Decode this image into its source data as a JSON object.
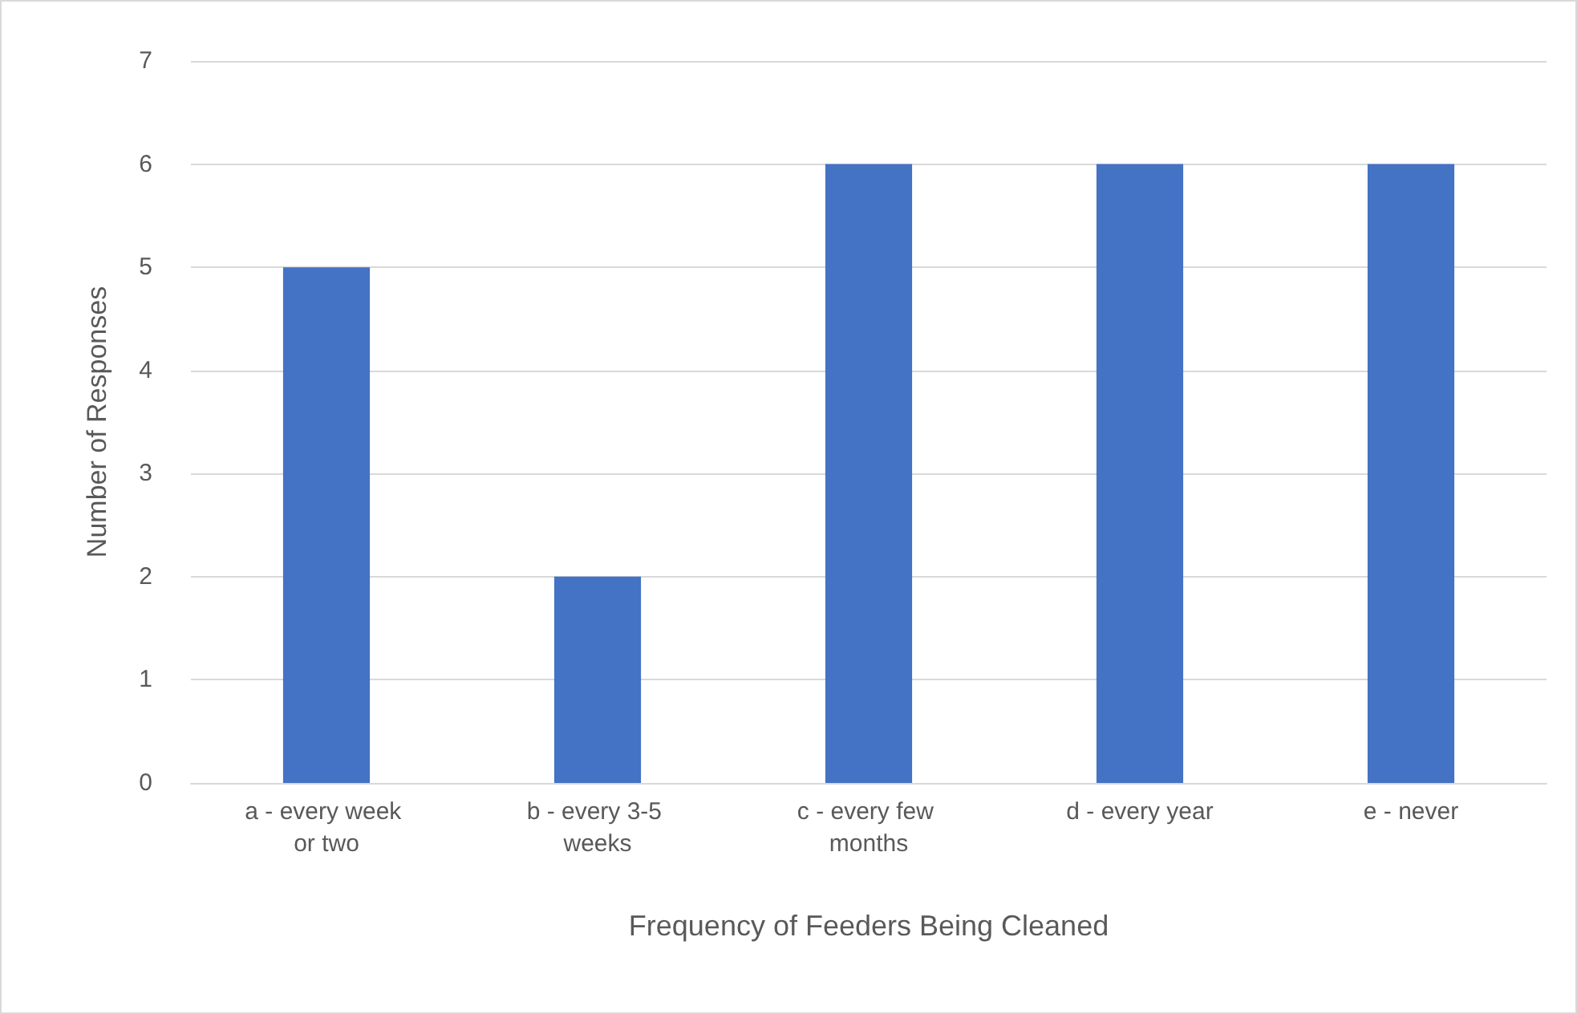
{
  "chart_data": {
    "type": "bar",
    "xlabel": "Frequency of Feeders Being Cleaned",
    "ylabel": "Number of Responses",
    "categories": [
      "a - every week or two",
      "b - every 3-5 weeks",
      "c - every few months",
      "d - every year",
      "e - never"
    ],
    "values": [
      5,
      2,
      6,
      6,
      6
    ],
    "color": "#4472c4",
    "ylim": [
      0,
      7
    ],
    "yticks": [
      0,
      1,
      2,
      3,
      4,
      5,
      6,
      7
    ],
    "grid": "y"
  }
}
